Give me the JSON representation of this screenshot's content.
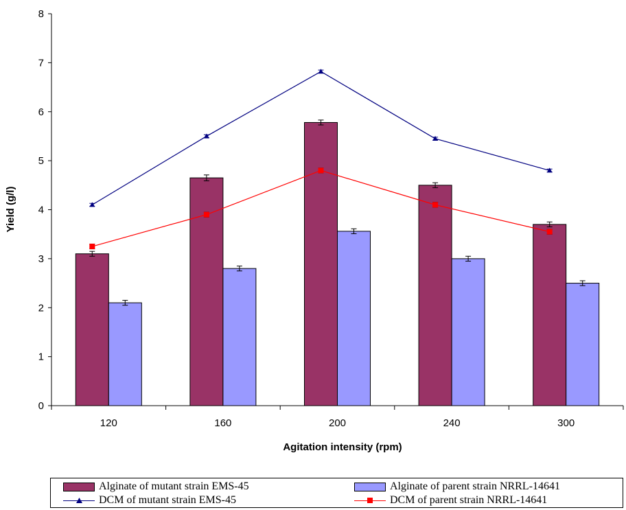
{
  "chart_data": {
    "type": "bar",
    "categories": [
      "120",
      "160",
      "200",
      "240",
      "300"
    ],
    "xlabel": "Agitation intensity (rpm)",
    "ylabel": "Yield (g/l)",
    "ylim": [
      0,
      8
    ],
    "yticks": [
      0,
      1,
      2,
      3,
      4,
      5,
      6,
      7,
      8
    ],
    "series": [
      {
        "name": "Alginate of mutant strain EMS-45",
        "kind": "bar",
        "color": "#993366",
        "values": [
          3.1,
          4.65,
          5.78,
          4.5,
          3.7
        ],
        "error": [
          0.05,
          0.06,
          0.05,
          0.05,
          0.05
        ]
      },
      {
        "name": "Alginate of parent strain NRRL-14641",
        "kind": "bar",
        "color": "#9999ff",
        "values": [
          2.1,
          2.8,
          3.56,
          3.0,
          2.5
        ],
        "error": [
          0.05,
          0.05,
          0.05,
          0.05,
          0.05
        ]
      },
      {
        "name": "DCM of mutant strain EMS-45",
        "kind": "line",
        "marker": "triangle",
        "color": "#000080",
        "values": [
          4.1,
          5.5,
          6.82,
          5.45,
          4.8
        ],
        "error": [
          0.03,
          0.03,
          0.03,
          0.03,
          0.03
        ]
      },
      {
        "name": "DCM of parent strain NRRL-14641",
        "kind": "line",
        "marker": "square",
        "color": "#ff0000",
        "values": [
          3.25,
          3.9,
          4.8,
          4.1,
          3.55
        ],
        "error": [
          0.05,
          0.05,
          0.05,
          0.05,
          0.05
        ]
      }
    ],
    "legend_position": "bottom",
    "grid": false
  }
}
